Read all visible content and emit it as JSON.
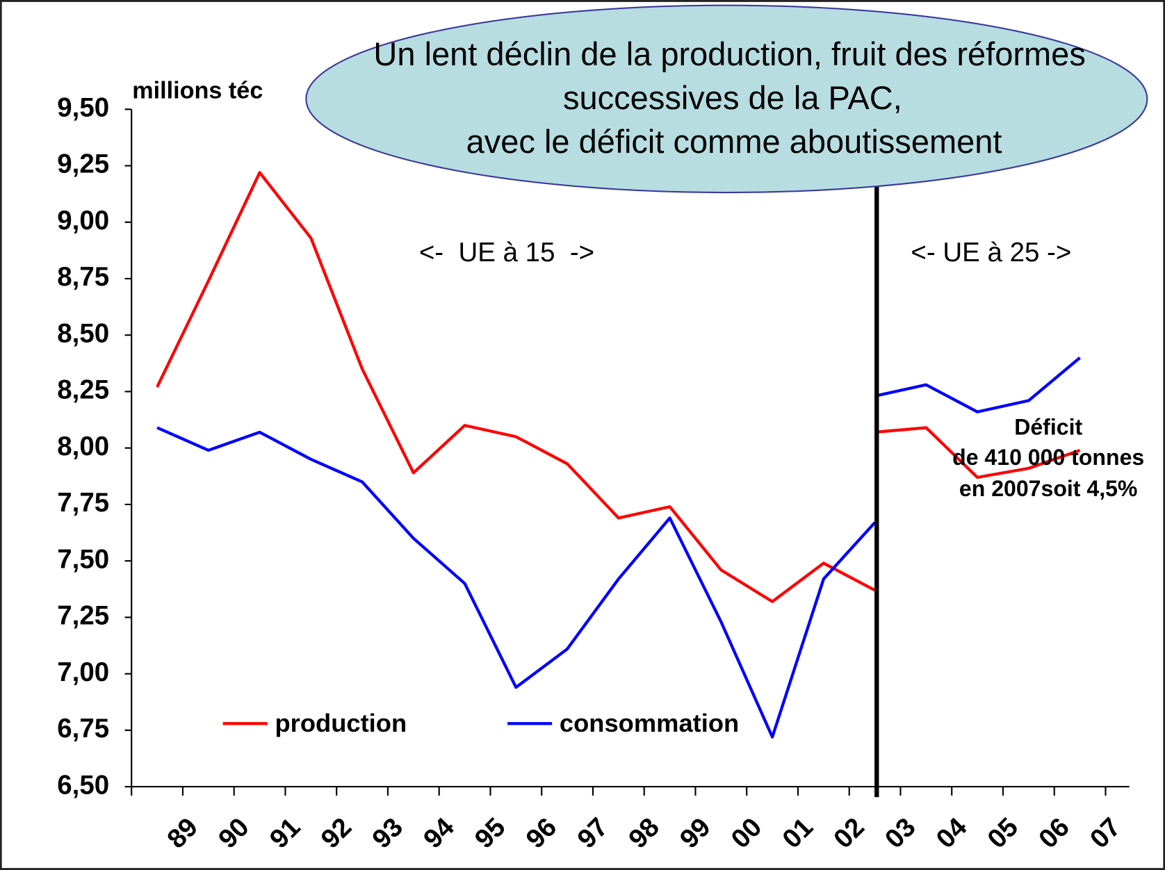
{
  "chart_data": {
    "type": "line",
    "y_label": "millions téc",
    "callout": [
      "Un lent déclin de la production, fruit des réformes",
      "successives de la PAC,",
      "avec le déficit comme aboutissement"
    ],
    "region_labels": [
      "<-  UE à 15  ->",
      "<- UE à 25 ->"
    ],
    "deficit_note": [
      "Déficit",
      "de 410 000 tonnes",
      "en 2007soit 4,5%"
    ],
    "categories": [
      "89",
      "90",
      "91",
      "92",
      "93",
      "94",
      "95",
      "96",
      "97",
      "98",
      "99",
      "00",
      "01",
      "02",
      "03",
      "04",
      "05",
      "06",
      "07"
    ],
    "series": [
      {
        "name": "production",
        "color": "#ff0000",
        "values": [
          8.27,
          8.74,
          9.22,
          8.93,
          8.35,
          7.89,
          8.1,
          8.05,
          7.93,
          7.69,
          7.74,
          7.46,
          7.32,
          7.49,
          7.37,
          null,
          null,
          null,
          null
        ]
      },
      {
        "name": "consommation",
        "color": "#0000ff",
        "values": [
          8.09,
          7.99,
          8.07,
          7.95,
          7.85,
          7.6,
          7.4,
          6.94,
          7.11,
          7.42,
          7.69,
          7.23,
          6.72,
          7.42,
          7.67,
          null,
          null,
          null,
          null
        ]
      },
      {
        "color": "#ff0000",
        "values": [
          null,
          null,
          null,
          null,
          null,
          null,
          null,
          null,
          null,
          null,
          null,
          null,
          null,
          null,
          8.07,
          8.09,
          7.87,
          7.91,
          7.99
        ]
      },
      {
        "color": "#0000ff",
        "values": [
          null,
          null,
          null,
          null,
          null,
          null,
          null,
          null,
          null,
          null,
          null,
          null,
          null,
          null,
          8.23,
          8.28,
          8.16,
          8.21,
          8.4
        ]
      }
    ],
    "ylim": [
      6.5,
      9.5
    ],
    "yticks": [
      {
        "value": 6.5,
        "label": "6,50"
      },
      {
        "value": 6.75,
        "label": "6,75"
      },
      {
        "value": 7,
        "label": "7,00"
      },
      {
        "value": 7.25,
        "label": "7,25"
      },
      {
        "value": 7.5,
        "label": "7,50"
      },
      {
        "value": 7.75,
        "label": "7,75"
      },
      {
        "value": 8,
        "label": "8,00"
      },
      {
        "value": 8.25,
        "label": "8,25"
      },
      {
        "value": 8.5,
        "label": "8,50"
      },
      {
        "value": 8.75,
        "label": "8,75"
      },
      {
        "value": 9,
        "label": "9,00"
      },
      {
        "value": 9.25,
        "label": "9,25"
      },
      {
        "value": 9.5,
        "label": "9,50"
      }
    ],
    "grid": false
  }
}
